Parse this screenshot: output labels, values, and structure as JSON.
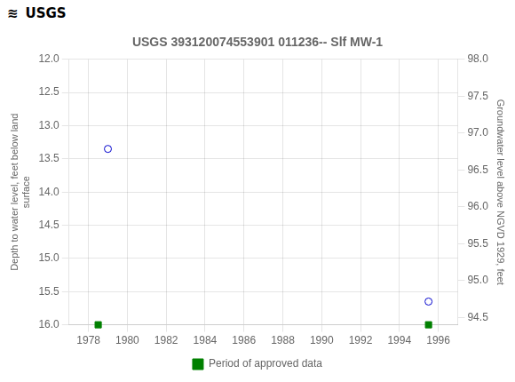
{
  "chart_data": {
    "type": "scatter",
    "title": "USGS 393120074553901 011236-- Slf MW-1",
    "annotations": [
      "≋",
      "USGS"
    ],
    "ylabel": "Depth to water level, feet below land\nsurface",
    "y2label": "Groundwater level above NGVD 1929, feet",
    "series": [
      {
        "color": "#0000cc",
        "marker": "open_circle",
        "x": [
          1979.0,
          1995.5
        ],
        "values": [
          13.35,
          15.65
        ]
      },
      {
        "name": "Period of approved data",
        "color": "#008000",
        "marker": "square",
        "x": [
          1978.5,
          1995.5
        ],
        "values": [
          16.0,
          16.0
        ]
      }
    ],
    "xlim": [
      1977,
      1997
    ],
    "xticks": [
      1978,
      1980,
      1982,
      1984,
      1986,
      1988,
      1990,
      1992,
      1994,
      1996
    ],
    "ylim": [
      16.0,
      12.0
    ],
    "yticks": [
      {
        "value": 12,
        "label": "12.0"
      },
      12.5,
      {
        "value": 13,
        "label": "13.0"
      },
      13.5,
      {
        "value": 14,
        "label": "14.0"
      },
      14.5,
      {
        "value": 15,
        "label": "15.0"
      },
      15.5,
      {
        "value": 16,
        "label": "16.0"
      }
    ],
    "y2lim": [
      94.4,
      98.0
    ],
    "y2ticks": [
      {
        "value": 98,
        "label": "98.0"
      },
      97.5,
      {
        "value": 97,
        "label": "97.0"
      },
      96.5,
      {
        "value": 96,
        "label": "96.0"
      },
      95.5,
      {
        "value": 95,
        "label": "95.0"
      },
      94.5
    ],
    "grid": true,
    "legend": "bottom"
  }
}
